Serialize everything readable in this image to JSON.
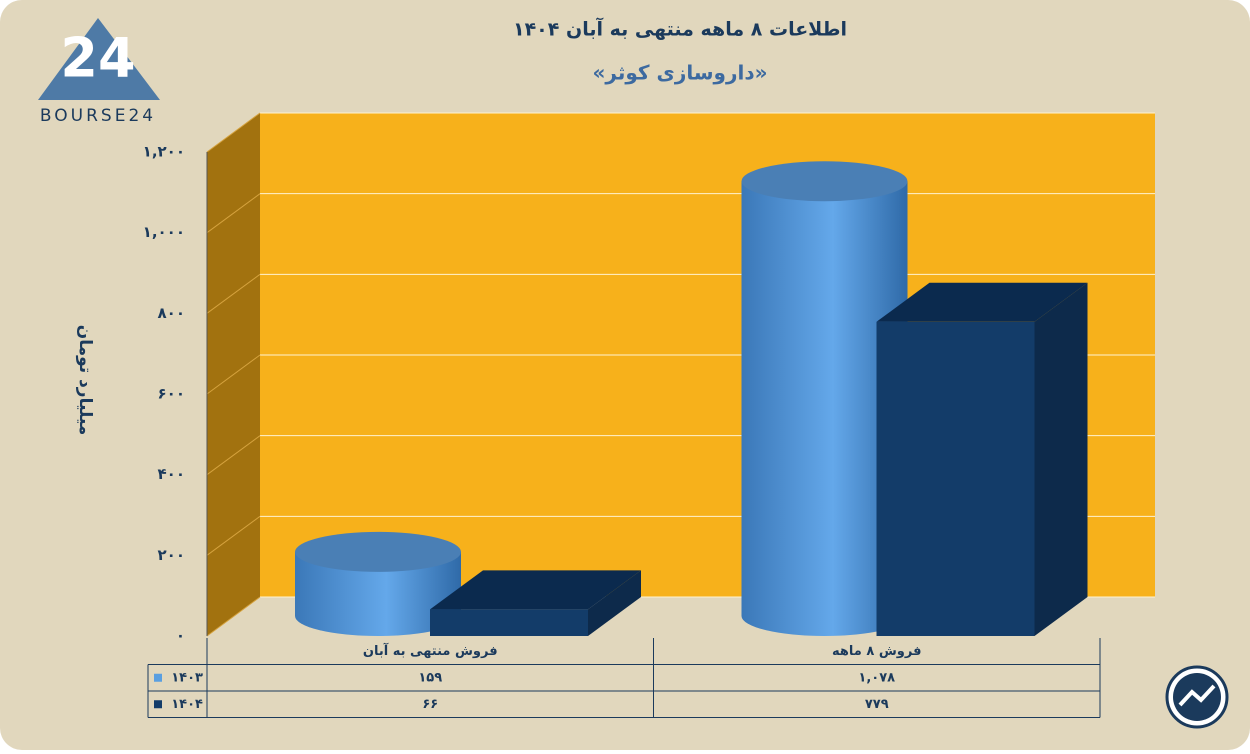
{
  "logo_text": "BOURSE24",
  "chart_data": {
    "type": "bar3d",
    "title": "اطلاعات ۸ ماهه منتهی به آبان ۱۴۰۴",
    "subtitle": "«داروسازی کوثر»",
    "y_label": "میلیارد تومان",
    "categories": [
      "فروش منتهی به  آبان",
      "فروش ۸  ماهه"
    ],
    "series": [
      {
        "name": "۱۴۰۳",
        "color": "#5a9fe0",
        "shape": "cylinder",
        "values": [
          159,
          1078
        ],
        "value_labels": [
          "۱۵۹",
          "۱,۰۷۸"
        ]
      },
      {
        "name": "۱۴۰۴",
        "color": "#133c69",
        "shape": "box",
        "values": [
          66,
          779
        ],
        "value_labels": [
          "۶۶",
          "۷۷۹"
        ]
      }
    ],
    "ylim": [
      0,
      1200
    ],
    "yticks": [
      {
        "value": 0,
        "label": "۰"
      },
      {
        "value": 200,
        "label": "۲۰۰"
      },
      {
        "value": 400,
        "label": "۴۰۰"
      },
      {
        "value": 600,
        "label": "۶۰۰"
      },
      {
        "value": 800,
        "label": "۸۰۰"
      },
      {
        "value": 1000,
        "label": "۱,۰۰۰"
      },
      {
        "value": 1200,
        "label": "۱,۲۰۰"
      }
    ],
    "grid": true
  }
}
